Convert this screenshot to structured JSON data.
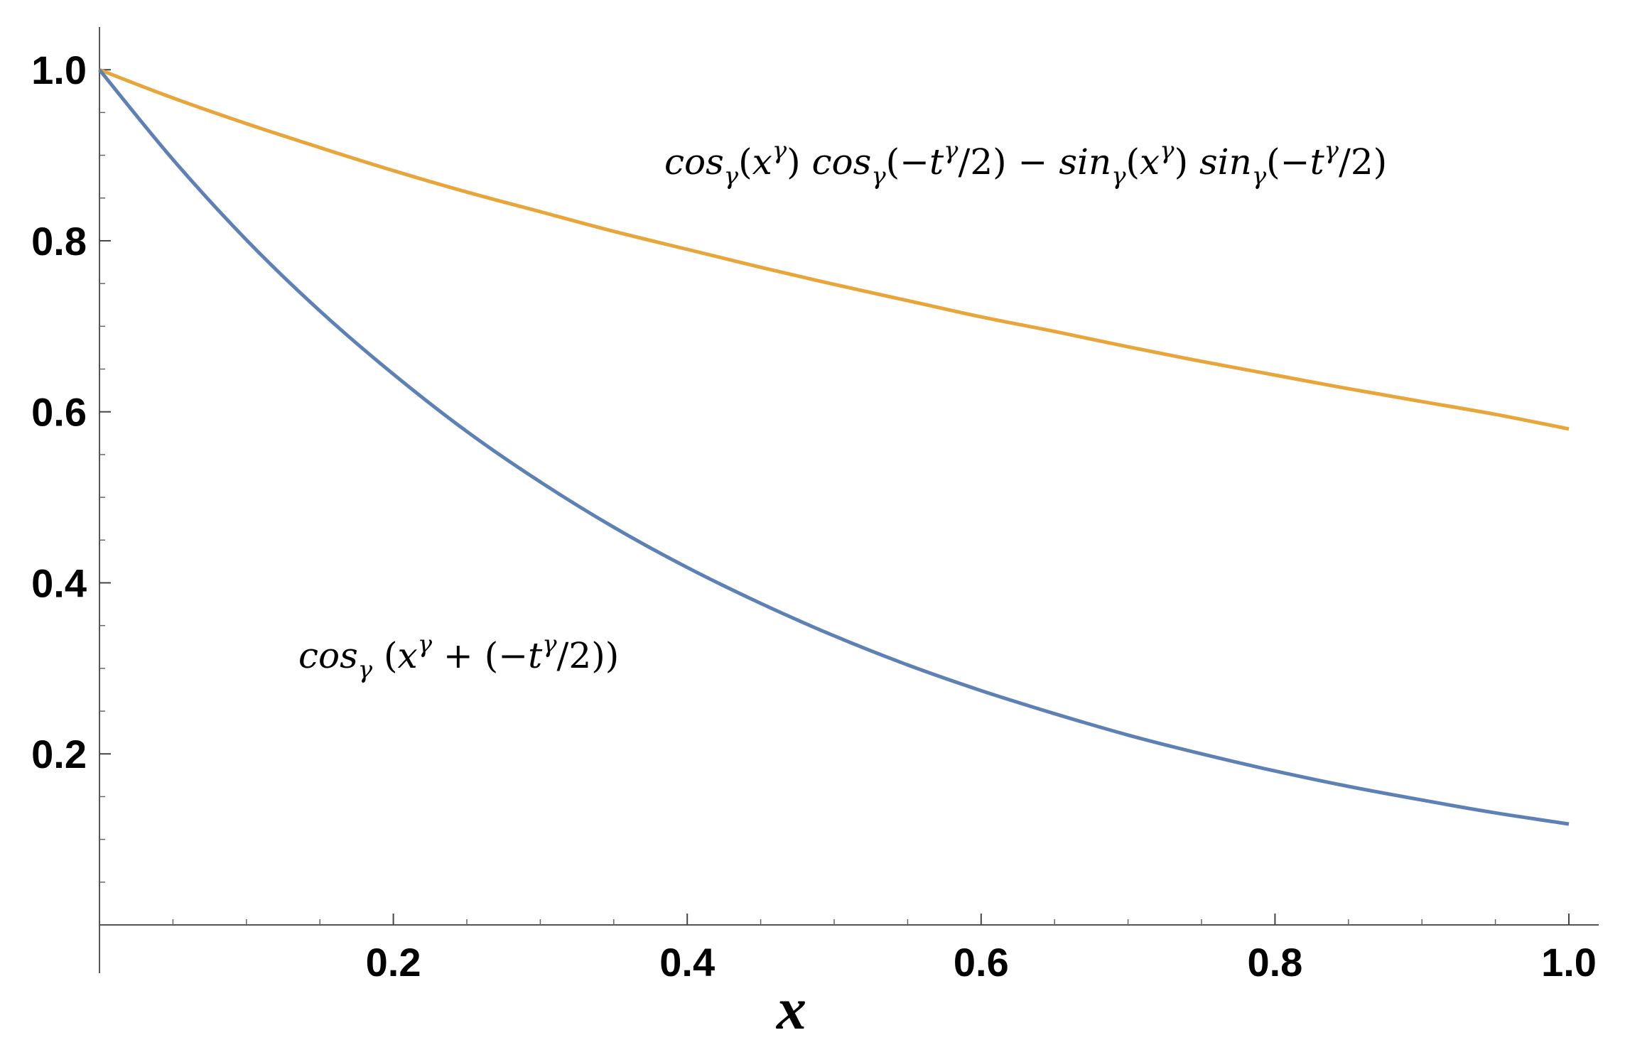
{
  "chart_data": {
    "type": "line",
    "title": "",
    "xlabel": "x",
    "ylabel": "",
    "xlim": [
      0,
      1.0
    ],
    "ylim": [
      0,
      1.05
    ],
    "grid": false,
    "x_ticks": [
      0.2,
      0.4,
      0.6,
      0.8,
      1.0
    ],
    "x_tick_labels": [
      "0.2",
      "0.4",
      "0.6",
      "0.8",
      "1.0"
    ],
    "y_ticks": [
      0.2,
      0.4,
      0.6,
      0.8,
      1.0
    ],
    "y_tick_labels": [
      "0.2",
      "0.4",
      "0.6",
      "0.8",
      "1.0"
    ],
    "x": [
      0.0,
      0.05,
      0.1,
      0.15,
      0.2,
      0.25,
      0.3,
      0.35,
      0.4,
      0.45,
      0.5,
      0.55,
      0.6,
      0.65,
      0.7,
      0.75,
      0.8,
      0.85,
      0.9,
      0.95,
      1.0
    ],
    "series": [
      {
        "color": "#E8A53A",
        "values": [
          1.0,
          0.967,
          0.937,
          0.909,
          0.882,
          0.857,
          0.834,
          0.811,
          0.79,
          0.769,
          0.749,
          0.73,
          0.711,
          0.694,
          0.676,
          0.659,
          0.643,
          0.627,
          0.612,
          0.597,
          0.58
        ],
        "annotation": {
          "parts": [
            {
              "t": "cos",
              "s": "italic"
            },
            {
              "t": "γ",
              "s": "sub"
            },
            {
              "t": "(",
              "s": "normal"
            },
            {
              "t": "x",
              "s": "italic"
            },
            {
              "t": "γ",
              "s": "sup"
            },
            {
              "t": ") ",
              "s": "normal"
            },
            {
              "t": "cos",
              "s": "italic"
            },
            {
              "t": "γ",
              "s": "sub"
            },
            {
              "t": "(−",
              "s": "normal"
            },
            {
              "t": "t",
              "s": "italic"
            },
            {
              "t": "γ",
              "s": "sup"
            },
            {
              "t": "/2) − ",
              "s": "normal"
            },
            {
              "t": "sin",
              "s": "italic"
            },
            {
              "t": "γ",
              "s": "sub"
            },
            {
              "t": "(",
              "s": "normal"
            },
            {
              "t": "x",
              "s": "italic"
            },
            {
              "t": "γ",
              "s": "sup"
            },
            {
              "t": ") ",
              "s": "normal"
            },
            {
              "t": "sin",
              "s": "italic"
            },
            {
              "t": "γ",
              "s": "sub"
            },
            {
              "t": "(−",
              "s": "normal"
            },
            {
              "t": "t",
              "s": "italic"
            },
            {
              "t": "γ",
              "s": "sup"
            },
            {
              "t": "/2)",
              "s": "normal"
            }
          ]
        }
      },
      {
        "color": "#5E81B5",
        "values": [
          1.0,
          0.895,
          0.801,
          0.718,
          0.644,
          0.577,
          0.518,
          0.465,
          0.418,
          0.376,
          0.338,
          0.304,
          0.274,
          0.247,
          0.222,
          0.2,
          0.18,
          0.162,
          0.146,
          0.131,
          0.118
        ],
        "annotation": {
          "parts": [
            {
              "t": "cos",
              "s": "italic"
            },
            {
              "t": "γ",
              "s": "sub"
            },
            {
              "t": " (",
              "s": "normal"
            },
            {
              "t": "x",
              "s": "italic"
            },
            {
              "t": "γ",
              "s": "sup"
            },
            {
              "t": " + (−",
              "s": "normal"
            },
            {
              "t": "t",
              "s": "italic"
            },
            {
              "t": "γ",
              "s": "sup"
            },
            {
              "t": "/2))",
              "s": "normal"
            }
          ]
        }
      }
    ]
  }
}
